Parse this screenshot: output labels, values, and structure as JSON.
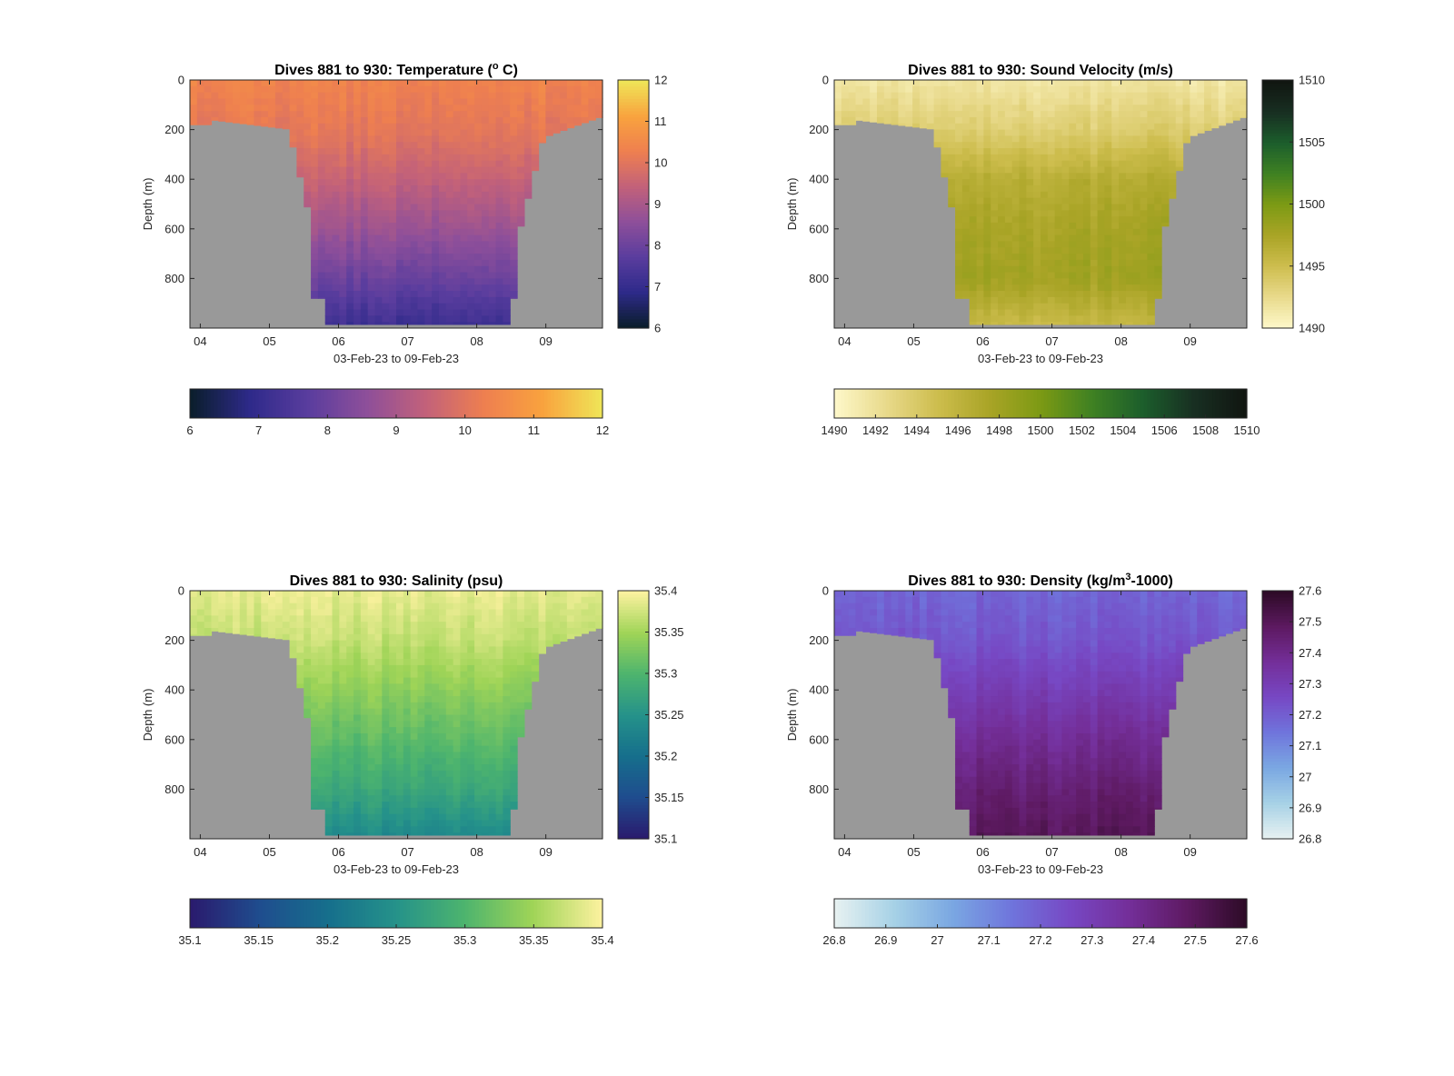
{
  "figure": {
    "background": "#ffffff",
    "land_color": "#999999",
    "axis_color": "#262626"
  },
  "chart_data": [
    {
      "type": "heatmap",
      "title_prefix": "Dives 881 to 930: Temperature (",
      "title_super": "o",
      "title_suffix": " C)",
      "xlabel": "03-Feb-23 to 09-Feb-23",
      "ylabel": "Depth (m)",
      "x_tick_labels": [
        "04",
        "05",
        "06",
        "07",
        "08",
        "09"
      ],
      "y_tick_labels": [
        "0",
        "200",
        "400",
        "600",
        "800"
      ],
      "y_ticks": [
        0,
        200,
        400,
        600,
        800
      ],
      "ylim": [
        0,
        1000
      ],
      "x_day_range": [
        3.85,
        9.82
      ],
      "colorbar_range": [
        6,
        12
      ],
      "vertical_colorbar_ticks": [
        "6",
        "7",
        "8",
        "9",
        "10",
        "11",
        "12"
      ],
      "horizontal_colorbar_ticks": [
        "6",
        "7",
        "8",
        "9",
        "10",
        "11",
        "12"
      ],
      "colormap": [
        "#0b1e2d",
        "#2e2a8a",
        "#5a3d9e",
        "#8e4f9a",
        "#c2617a",
        "#ee7f50",
        "#f9a23e",
        "#efe457"
      ],
      "profile": {
        "depth": [
          0,
          200,
          400,
          600,
          800,
          980
        ],
        "values": [
          10.4,
          10.1,
          9.5,
          8.8,
          8.0,
          7.2
        ]
      },
      "show_vertical_colorbar": true
    },
    {
      "type": "heatmap",
      "title_prefix": "Dives 881 to 930: Sound Velocity (m/s)",
      "title_super": "",
      "title_suffix": "",
      "xlabel": "03-Feb-23 to 09-Feb-23",
      "ylabel": "Depth (m)",
      "x_tick_labels": [
        "04",
        "05",
        "06",
        "07",
        "08",
        "09"
      ],
      "y_tick_labels": [
        "0",
        "200",
        "400",
        "600",
        "800"
      ],
      "y_ticks": [
        0,
        200,
        400,
        600,
        800
      ],
      "ylim": [
        0,
        1000
      ],
      "x_day_range": [
        3.85,
        9.82
      ],
      "colorbar_range": [
        1490,
        1510
      ],
      "vertical_colorbar_ticks": [
        "1490",
        "1495",
        "1500",
        "1505",
        "1510"
      ],
      "horizontal_colorbar_ticks": [
        "1490",
        "1492",
        "1494",
        "1496",
        "1498",
        "1500",
        "1502",
        "1504",
        "1506",
        "1508",
        "1510"
      ],
      "colormap": [
        "#fdf7c8",
        "#e8d98a",
        "#cdbd4d",
        "#a9a426",
        "#7c9a14",
        "#3f8122",
        "#1c5e2c",
        "#182f22",
        "#111611"
      ],
      "profile": {
        "depth": [
          0,
          200,
          400,
          600,
          800,
          980
        ],
        "values": [
          1491.5,
          1493.5,
          1496.5,
          1497.5,
          1498.0,
          1495.5
        ]
      },
      "show_vertical_colorbar": true
    },
    {
      "type": "heatmap",
      "title_prefix": "Dives 881 to 930: Salinity (psu)",
      "title_super": "",
      "title_suffix": "",
      "xlabel": "03-Feb-23 to 09-Feb-23",
      "ylabel": "Depth (m)",
      "x_tick_labels": [
        "04",
        "05",
        "06",
        "07",
        "08",
        "09"
      ],
      "y_tick_labels": [
        "0",
        "200",
        "400",
        "600",
        "800"
      ],
      "y_ticks": [
        0,
        200,
        400,
        600,
        800
      ],
      "ylim": [
        0,
        1000
      ],
      "x_day_range": [
        3.85,
        9.82
      ],
      "colorbar_range": [
        35.1,
        35.4
      ],
      "vertical_colorbar_ticks": [
        "35.1",
        "35.15",
        "35.2",
        "35.25",
        "35.3",
        "35.35",
        "35.4"
      ],
      "horizontal_colorbar_ticks": [
        "35.1",
        "35.15",
        "35.2",
        "35.25",
        "35.3",
        "35.35",
        "35.4"
      ],
      "colormap": [
        "#2a1b6e",
        "#1f4d8e",
        "#166f8c",
        "#25928a",
        "#4db46e",
        "#9fd457",
        "#fbf19e"
      ],
      "profile": {
        "depth": [
          0,
          200,
          400,
          600,
          800,
          980
        ],
        "values": [
          35.39,
          35.37,
          35.34,
          35.31,
          35.28,
          35.24
        ]
      },
      "show_vertical_colorbar": true
    },
    {
      "type": "heatmap",
      "title_prefix": "Dives 881 to 930: Density (kg/m",
      "title_super": "3",
      "title_suffix": "-1000)",
      "xlabel": "03-Feb-23 to 09-Feb-23",
      "ylabel": "Depth (m)",
      "x_tick_labels": [
        "04",
        "05",
        "06",
        "07",
        "08",
        "09"
      ],
      "y_tick_labels": [
        "0",
        "200",
        "400",
        "600",
        "800"
      ],
      "y_ticks": [
        0,
        200,
        400,
        600,
        800
      ],
      "ylim": [
        0,
        1000
      ],
      "x_day_range": [
        3.85,
        9.82
      ],
      "colorbar_range": [
        26.8,
        27.6
      ],
      "vertical_colorbar_ticks": [
        "26.8",
        "26.9",
        "27",
        "27.1",
        "27.2",
        "27.3",
        "27.4",
        "27.5",
        "27.6"
      ],
      "horizontal_colorbar_ticks": [
        "26.8",
        "26.9",
        "27",
        "27.1",
        "27.2",
        "27.3",
        "27.4",
        "27.5",
        "27.6"
      ],
      "colormap": [
        "#e6f1f1",
        "#a6d1e6",
        "#7aa7e2",
        "#6f75dc",
        "#7748c4",
        "#742f9a",
        "#5e1a62",
        "#2e0b28"
      ],
      "profile": {
        "depth": [
          0,
          200,
          400,
          600,
          800,
          980
        ],
        "values": [
          27.18,
          27.22,
          27.3,
          27.38,
          27.45,
          27.5
        ]
      },
      "show_vertical_colorbar": true
    }
  ]
}
